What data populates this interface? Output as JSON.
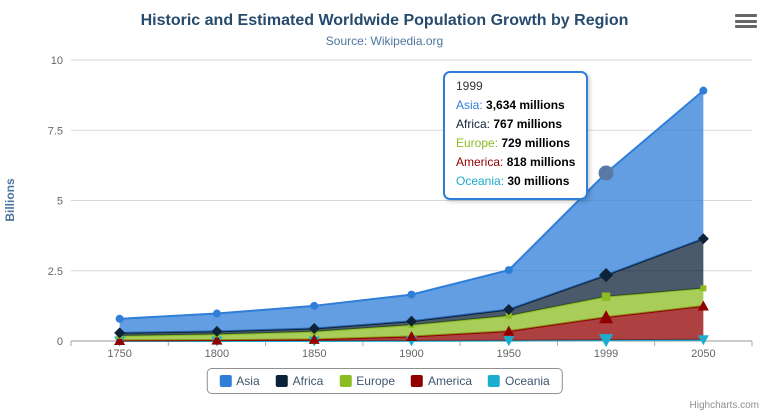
{
  "chart": {
    "title": "Historic and Estimated Worldwide Population Growth by Region",
    "subtitle": "Source: Wikipedia.org",
    "y_axis_title": "Billions",
    "credits": "Highcharts.com",
    "icons": {
      "context_menu": "hamburger-menu"
    }
  },
  "chart_data": {
    "type": "area",
    "stacking": "normal",
    "title": "Historic and Estimated Worldwide Population Growth by Region",
    "subtitle": "Source: Wikipedia.org",
    "ylabel": "Billions",
    "xlabel": "",
    "unit_suffix": " millions",
    "ylim": [
      0,
      10
    ],
    "y_ticks": [
      "0",
      "2.5",
      "5",
      "7.5",
      "10"
    ],
    "categories": [
      "1750",
      "1800",
      "1850",
      "1900",
      "1950",
      "1999",
      "2050"
    ],
    "hover_index": 5,
    "grid": true,
    "legend_position": "bottom",
    "series": [
      {
        "name": "Asia",
        "color": "#2f7ed8",
        "marker": "circle",
        "values_millions": [
          502,
          635,
          809,
          947,
          1402,
          3634,
          5268
        ]
      },
      {
        "name": "Africa",
        "color": "#0d233a",
        "marker": "diamond",
        "values_millions": [
          106,
          107,
          111,
          133,
          221,
          767,
          1766
        ]
      },
      {
        "name": "Europe",
        "color": "#8bbc21",
        "marker": "square",
        "values_millions": [
          163,
          203,
          276,
          408,
          547,
          729,
          628
        ]
      },
      {
        "name": "America",
        "color": "#910000",
        "marker": "triangle",
        "values_millions": [
          18,
          31,
          54,
          156,
          339,
          818,
          1201
        ]
      },
      {
        "name": "Oceania",
        "color": "#1aadce",
        "marker": "triangle-down",
        "values_millions": [
          2,
          2,
          2,
          6,
          13,
          30,
          46
        ]
      }
    ]
  },
  "tooltip": {
    "header": "1999",
    "rows": [
      {
        "name": "Asia",
        "value": "3,634 millions"
      },
      {
        "name": "Africa",
        "value": "767 millions"
      },
      {
        "name": "Europe",
        "value": "729 millions"
      },
      {
        "name": "America",
        "value": "818 millions"
      },
      {
        "name": "Oceania",
        "value": "30 millions"
      }
    ]
  }
}
